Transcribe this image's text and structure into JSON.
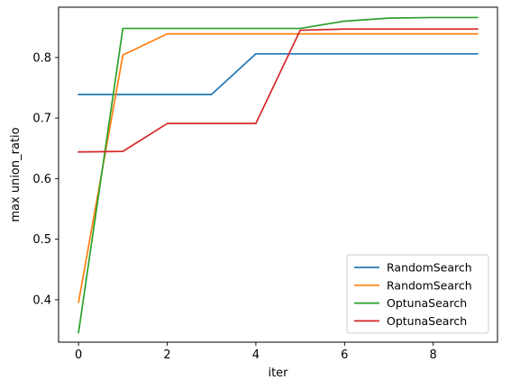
{
  "chart_data": {
    "type": "line",
    "title": "",
    "xlabel": "iter",
    "ylabel": "max union_ratio",
    "xlim": [
      -0.45,
      9.45
    ],
    "ylim": [
      0.33,
      0.883
    ],
    "xticks": [
      0,
      2,
      4,
      6,
      8
    ],
    "xtick_labels": [
      "0",
      "2",
      "4",
      "6",
      "8"
    ],
    "yticks": [
      0.4,
      0.5,
      0.6,
      0.7,
      0.8
    ],
    "ytick_labels": [
      "0.4",
      "0.5",
      "0.6",
      "0.7",
      "0.8"
    ],
    "grid": false,
    "legend_position": "lower-right",
    "x": [
      0,
      1,
      2,
      3,
      4,
      5,
      6,
      7,
      8,
      9
    ],
    "series": [
      {
        "name": "RandomSearch",
        "color": "#1f77b4",
        "values": [
          0.739,
          0.739,
          0.739,
          0.739,
          0.806,
          0.806,
          0.806,
          0.806,
          0.806,
          0.806
        ]
      },
      {
        "name": "RandomSearch",
        "color": "#ff7f0e",
        "values": [
          0.396,
          0.804,
          0.839,
          0.839,
          0.839,
          0.839,
          0.839,
          0.839,
          0.839,
          0.839
        ]
      },
      {
        "name": "OptunaSearch",
        "color": "#2ca02c",
        "values": [
          0.346,
          0.848,
          0.848,
          0.848,
          0.848,
          0.848,
          0.86,
          0.865,
          0.866,
          0.866
        ]
      },
      {
        "name": "OptunaSearch",
        "color": "#d62728",
        "values": [
          0.644,
          0.645,
          0.691,
          0.691,
          0.691,
          0.845,
          0.847,
          0.847,
          0.847,
          0.847
        ]
      }
    ]
  }
}
